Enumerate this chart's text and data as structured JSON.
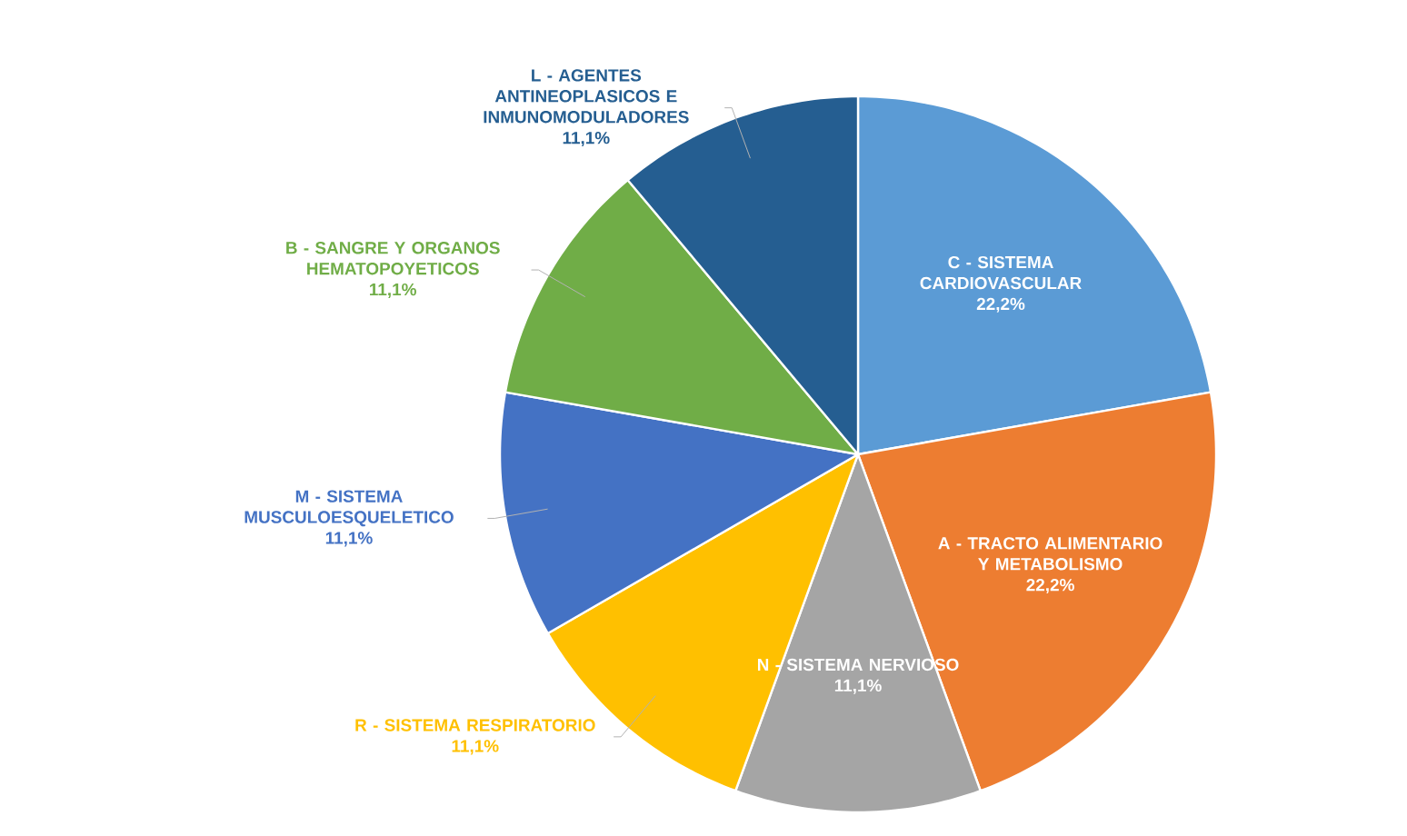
{
  "chart_data": {
    "type": "pie",
    "categories": [
      "C - SISTEMA CARDIOVASCULAR",
      "A - TRACTO ALIMENTARIO Y METABOLISMO",
      "N - SISTEMA NERVIOSO",
      "R - SISTEMA RESPIRATORIO",
      "M - SISTEMA MUSCULOESQUELETICO",
      "B - SANGRE Y ORGANOS HEMATOPOYETICOS",
      "L - AGENTES ANTINEOPLASICOS E INMUNOMODULADORES"
    ],
    "values": [
      22.2,
      22.2,
      11.1,
      11.1,
      11.1,
      11.1,
      11.1
    ],
    "value_labels": [
      "22,2%",
      "22,2%",
      "11,1%",
      "11,1%",
      "11,1%",
      "11,1%",
      "11,1%"
    ],
    "colors": [
      "#5b9bd5",
      "#ed7d31",
      "#a5a5a5",
      "#ffc000",
      "#4472c4",
      "#70ad47",
      "#255e91"
    ]
  }
}
